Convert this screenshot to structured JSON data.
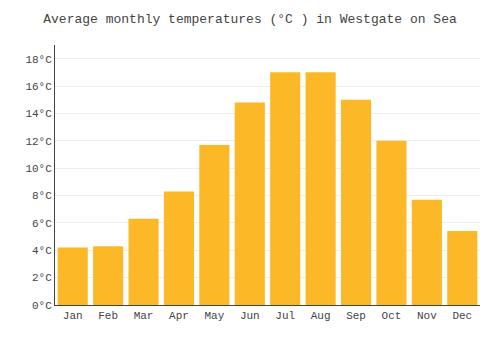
{
  "chart_data": {
    "type": "bar",
    "title": "Average monthly temperatures (°C ) in Westgate on Sea",
    "categories": [
      "Jan",
      "Feb",
      "Mar",
      "Apr",
      "May",
      "Jun",
      "Jul",
      "Aug",
      "Sep",
      "Oct",
      "Nov",
      "Dec"
    ],
    "values": [
      4.2,
      4.3,
      6.3,
      8.3,
      11.7,
      14.8,
      17.0,
      17.0,
      15.0,
      12.0,
      7.7,
      5.4
    ],
    "color": "#FDB827",
    "ylim": [
      0,
      19
    ],
    "yticks": [
      {
        "value": 0,
        "label": "0°C"
      },
      {
        "value": 2,
        "label": "2°C"
      },
      {
        "value": 4,
        "label": "4°C"
      },
      {
        "value": 6,
        "label": "6°C"
      },
      {
        "value": 8,
        "label": "8°C"
      },
      {
        "value": 10,
        "label": "10°C"
      },
      {
        "value": 12,
        "label": "12°C"
      },
      {
        "value": 14,
        "label": "14°C"
      },
      {
        "value": 16,
        "label": "16°C"
      },
      {
        "value": 18,
        "label": "18°C"
      }
    ],
    "grid": true
  }
}
